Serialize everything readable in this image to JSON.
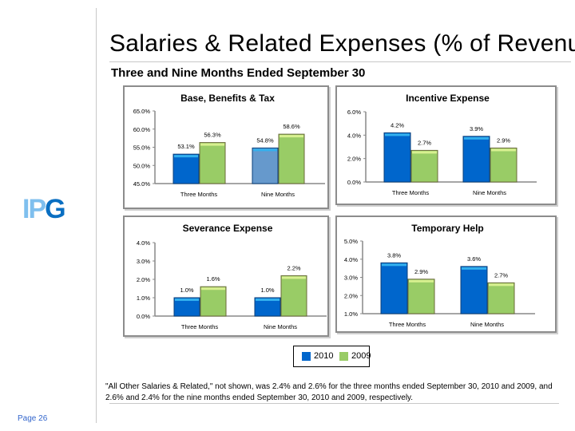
{
  "title": "Salaries & Related Expenses (% of Revenue)",
  "subtitle": "Three and Nine Months Ended September 30",
  "logo_text": "IPG",
  "colors": {
    "series_2010": "#0066cc",
    "series_2010_alt": "#6699cc",
    "series_2009": "#99cc66"
  },
  "legend": [
    {
      "label": "2010",
      "color": "#0066cc"
    },
    {
      "label": "2009",
      "color": "#99cc66"
    }
  ],
  "chart_data": [
    {
      "type": "bar",
      "title": "Base, Benefits & Tax",
      "categories": [
        "Three Months",
        "Nine Months"
      ],
      "series": [
        {
          "name": "2010",
          "values": [
            53.1,
            54.8
          ],
          "labels": [
            "53.1%",
            "54.8%"
          ]
        },
        {
          "name": "2009",
          "values": [
            56.3,
            58.6
          ],
          "labels": [
            "56.3%",
            "58.6%"
          ]
        }
      ],
      "ylim": [
        45,
        65
      ],
      "yticks": [
        "45.0%",
        "50.0%",
        "55.0%",
        "60.0%",
        "65.0%"
      ],
      "grid": false
    },
    {
      "type": "bar",
      "title": "Incentive Expense",
      "categories": [
        "Three Months",
        "Nine Months"
      ],
      "series": [
        {
          "name": "2010",
          "values": [
            4.2,
            3.9
          ],
          "labels": [
            "4.2%",
            "3.9%"
          ]
        },
        {
          "name": "2009",
          "values": [
            2.7,
            2.9
          ],
          "labels": [
            "2.7%",
            "2.9%"
          ]
        }
      ],
      "ylim": [
        0,
        6
      ],
      "yticks": [
        "0.0%",
        "2.0%",
        "4.0%",
        "6.0%"
      ],
      "grid": false
    },
    {
      "type": "bar",
      "title": "Severance Expense",
      "categories": [
        "Three Months",
        "Nine Months"
      ],
      "series": [
        {
          "name": "2010",
          "values": [
            1.0,
            1.0
          ],
          "labels": [
            "1.0%",
            "1.0%"
          ]
        },
        {
          "name": "2009",
          "values": [
            1.6,
            2.2
          ],
          "labels": [
            "1.6%",
            "2.2%"
          ]
        }
      ],
      "ylim": [
        0,
        4
      ],
      "yticks": [
        "0.0%",
        "1.0%",
        "2.0%",
        "3.0%",
        "4.0%"
      ],
      "grid": false
    },
    {
      "type": "bar",
      "title": "Temporary Help",
      "categories": [
        "Three Months",
        "Nine Months"
      ],
      "series": [
        {
          "name": "2010",
          "values": [
            3.8,
            3.6
          ],
          "labels": [
            "3.8%",
            "3.6%"
          ]
        },
        {
          "name": "2009",
          "values": [
            2.9,
            2.7
          ],
          "labels": [
            "2.9%",
            "2.7%"
          ]
        }
      ],
      "ylim": [
        1,
        5
      ],
      "yticks": [
        "1.0%",
        "2.0%",
        "3.0%",
        "4.0%",
        "5.0%"
      ],
      "grid": false
    }
  ],
  "footnote": "\"All Other Salaries & Related,\" not shown, was 2.4% and 2.6% for the three months ended September 30, 2010 and 2009, and 2.6% and 2.4% for the nine months ended September 30, 2010 and 2009, respectively.",
  "page_label": "Page 26"
}
